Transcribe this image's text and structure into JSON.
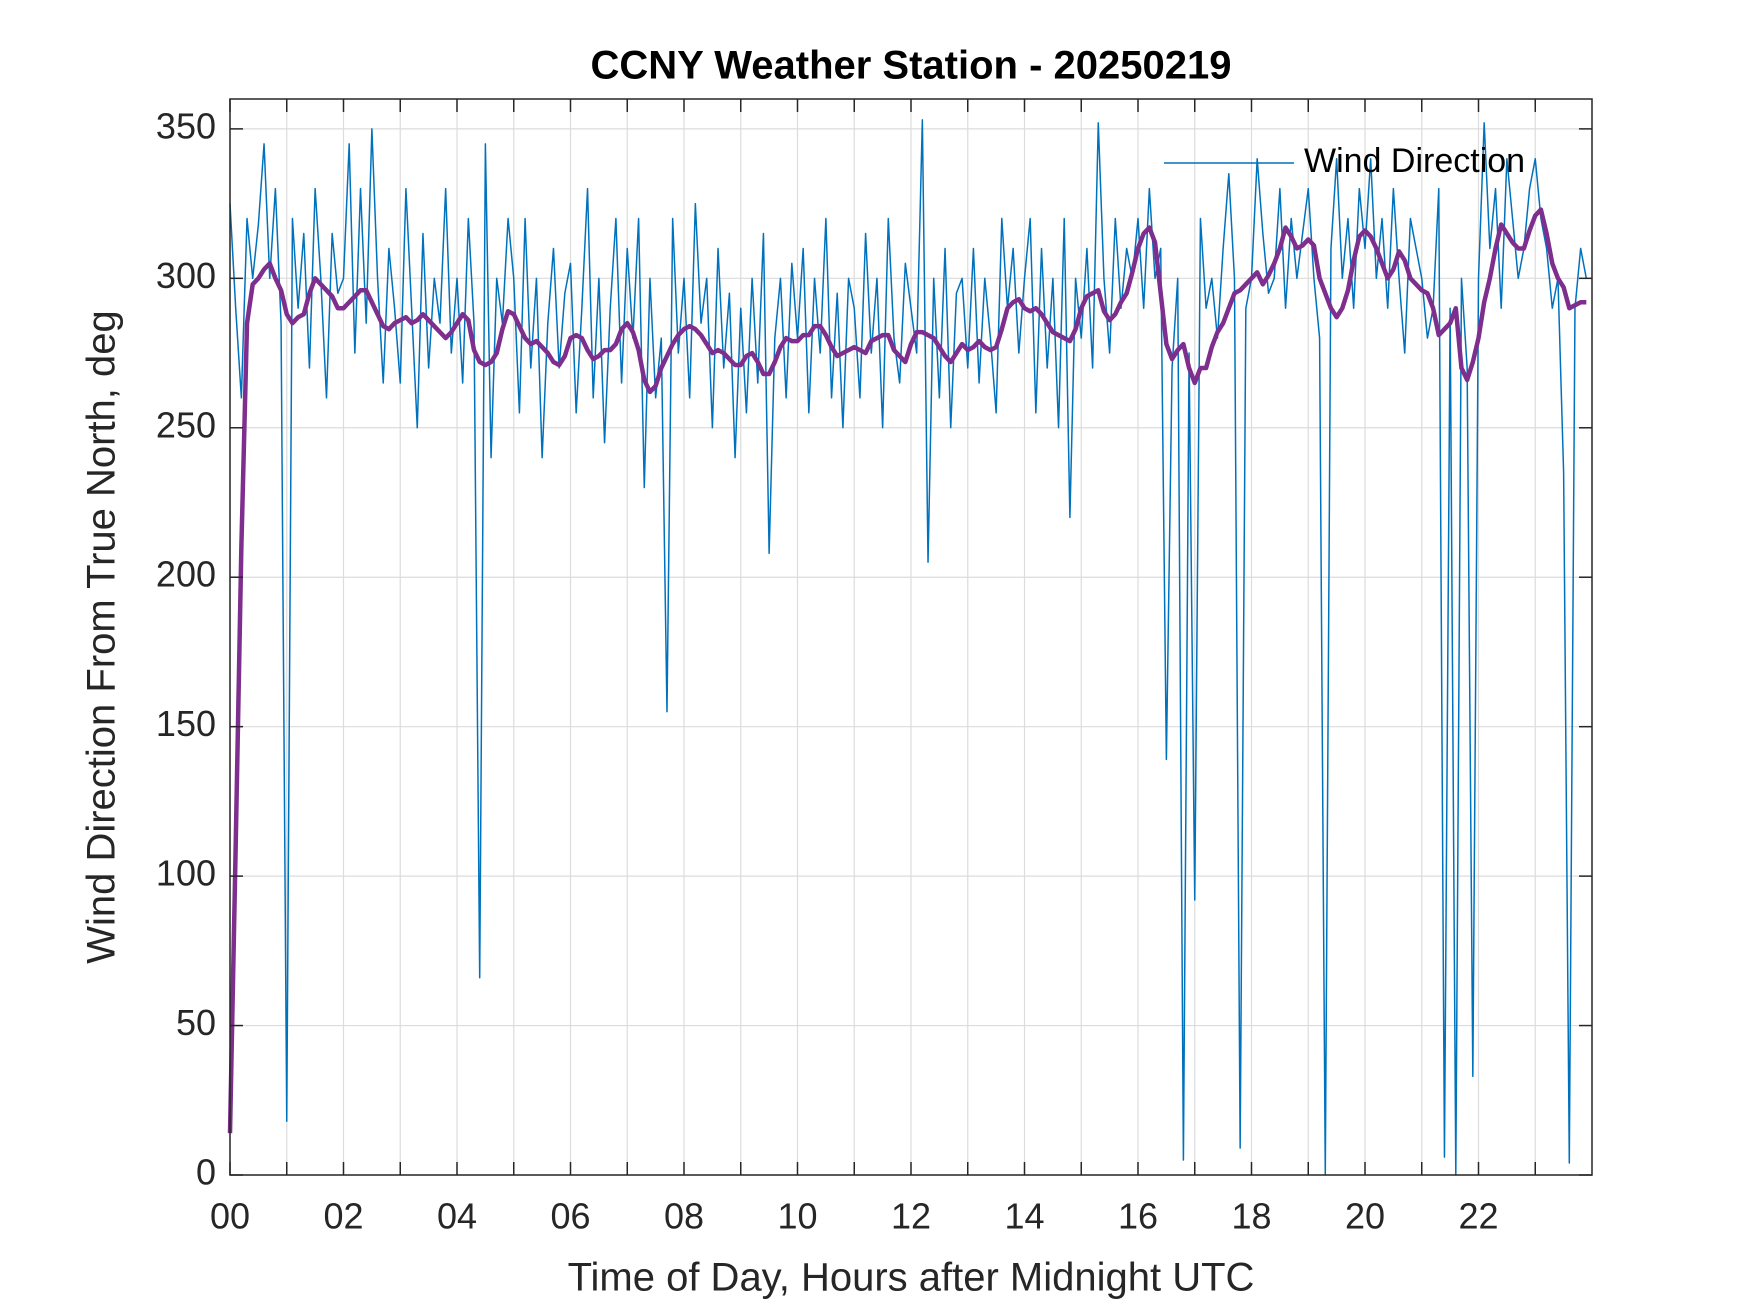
{
  "chart_data": {
    "type": "line",
    "title": "CCNY Weather Station - 20250219",
    "x_label": "Time of Day, Hours after Midnight UTC",
    "y_label": "Wind Direction From True North, deg",
    "xlim": [
      0,
      24
    ],
    "ylim": [
      0,
      360
    ],
    "xticks": [
      {
        "value": 0,
        "label": "00"
      },
      {
        "value": 1,
        "label": null
      },
      {
        "value": 2,
        "label": "02"
      },
      {
        "value": 3,
        "label": null
      },
      {
        "value": 4,
        "label": "04"
      },
      {
        "value": 5,
        "label": null
      },
      {
        "value": 6,
        "label": "06"
      },
      {
        "value": 7,
        "label": null
      },
      {
        "value": 8,
        "label": "08"
      },
      {
        "value": 9,
        "label": null
      },
      {
        "value": 10,
        "label": "10"
      },
      {
        "value": 11,
        "label": null
      },
      {
        "value": 12,
        "label": "12"
      },
      {
        "value": 13,
        "label": null
      },
      {
        "value": 14,
        "label": "14"
      },
      {
        "value": 15,
        "label": null
      },
      {
        "value": 16,
        "label": "16"
      },
      {
        "value": 17,
        "label": null
      },
      {
        "value": 18,
        "label": "18"
      },
      {
        "value": 19,
        "label": null
      },
      {
        "value": 20,
        "label": "20"
      },
      {
        "value": 21,
        "label": null
      },
      {
        "value": 22,
        "label": "22"
      },
      {
        "value": 23,
        "label": null
      }
    ],
    "yticks": [
      0,
      50,
      100,
      150,
      200,
      250,
      300,
      350
    ],
    "grid": true,
    "legend": "upper right",
    "x": [
      0,
      0.1,
      0.2,
      0.3,
      0.4,
      0.5,
      0.6,
      0.7,
      0.8,
      0.9,
      1,
      1.1,
      1.2,
      1.3,
      1.4,
      1.5,
      1.6,
      1.7,
      1.8,
      1.9,
      2,
      2.1,
      2.2,
      2.3,
      2.4,
      2.5,
      2.6,
      2.7,
      2.8,
      2.9,
      3,
      3.1,
      3.2,
      3.3,
      3.4,
      3.5,
      3.6,
      3.7,
      3.8,
      3.9,
      4,
      4.1,
      4.2,
      4.3,
      4.4,
      4.5,
      4.6,
      4.7,
      4.8,
      4.9,
      5,
      5.1,
      5.2,
      5.3,
      5.4,
      5.5,
      5.6,
      5.7,
      5.8,
      5.9,
      6,
      6.1,
      6.2,
      6.3,
      6.4,
      6.5,
      6.6,
      6.7,
      6.8,
      6.9,
      7,
      7.1,
      7.2,
      7.3,
      7.4,
      7.5,
      7.6,
      7.7,
      7.8,
      7.9,
      8,
      8.1,
      8.2,
      8.3,
      8.4,
      8.5,
      8.6,
      8.7,
      8.8,
      8.9,
      9,
      9.1,
      9.2,
      9.3,
      9.4,
      9.5,
      9.6,
      9.7,
      9.8,
      9.9,
      10,
      10.1,
      10.2,
      10.3,
      10.4,
      10.5,
      10.6,
      10.7,
      10.8,
      10.9,
      11,
      11.1,
      11.2,
      11.3,
      11.4,
      11.5,
      11.6,
      11.7,
      11.8,
      11.9,
      12,
      12.1,
      12.2,
      12.3,
      12.4,
      12.5,
      12.6,
      12.7,
      12.8,
      12.9,
      13,
      13.1,
      13.2,
      13.3,
      13.4,
      13.5,
      13.6,
      13.7,
      13.8,
      13.9,
      14,
      14.1,
      14.2,
      14.3,
      14.4,
      14.5,
      14.6,
      14.7,
      14.8,
      14.9,
      15,
      15.1,
      15.2,
      15.3,
      15.4,
      15.5,
      15.6,
      15.7,
      15.8,
      15.9,
      16,
      16.1,
      16.2,
      16.3,
      16.4,
      16.5,
      16.6,
      16.7,
      16.8,
      16.9,
      17,
      17.1,
      17.2,
      17.3,
      17.4,
      17.5,
      17.6,
      17.7,
      17.8,
      17.9,
      18,
      18.1,
      18.2,
      18.3,
      18.4,
      18.5,
      18.6,
      18.7,
      18.8,
      18.9,
      19,
      19.1,
      19.2,
      19.3,
      19.4,
      19.5,
      19.6,
      19.7,
      19.8,
      19.9,
      20,
      20.1,
      20.2,
      20.3,
      20.4,
      20.5,
      20.6,
      20.7,
      20.8,
      20.9,
      21,
      21.1,
      21.2,
      21.3,
      21.4,
      21.5,
      21.6,
      21.7,
      21.8,
      21.9,
      22,
      22.1,
      22.2,
      22.3,
      22.4,
      22.5,
      22.6,
      22.7,
      22.8,
      22.9,
      23,
      23.1,
      23.2,
      23.3,
      23.4,
      23.5,
      23.6,
      23.7,
      23.8,
      23.9
    ],
    "series": [
      {
        "name": "Wind Direction",
        "color": "#0072bd",
        "width": 1.5,
        "values": [
          325,
          290,
          260,
          320,
          300,
          318,
          345,
          300,
          330,
          285,
          18,
          320,
          290,
          315,
          270,
          330,
          300,
          260,
          315,
          295,
          300,
          345,
          275,
          330,
          285,
          350,
          300,
          265,
          310,
          290,
          265,
          330,
          290,
          250,
          315,
          270,
          300,
          285,
          330,
          275,
          300,
          265,
          320,
          285,
          66,
          345,
          240,
          300,
          285,
          320,
          300,
          255,
          320,
          270,
          300,
          240,
          285,
          310,
          270,
          295,
          305,
          255,
          290,
          330,
          260,
          300,
          245,
          290,
          320,
          265,
          310,
          280,
          320,
          230,
          300,
          260,
          280,
          155,
          320,
          275,
          300,
          260,
          325,
          285,
          300,
          250,
          310,
          270,
          295,
          240,
          290,
          255,
          300,
          265,
          315,
          208,
          280,
          300,
          260,
          305,
          280,
          310,
          255,
          300,
          275,
          320,
          260,
          295,
          250,
          300,
          290,
          260,
          315,
          275,
          300,
          250,
          320,
          280,
          265,
          305,
          290,
          275,
          353,
          205,
          300,
          260,
          310,
          250,
          295,
          300,
          270,
          310,
          265,
          300,
          280,
          255,
          320,
          290,
          310,
          275,
          300,
          320,
          255,
          310,
          270,
          300,
          250,
          320,
          220,
          300,
          280,
          310,
          270,
          352,
          300,
          275,
          320,
          290,
          310,
          300,
          320,
          290,
          330,
          300,
          310,
          139,
          270,
          300,
          5,
          275,
          92,
          320,
          290,
          300,
          280,
          310,
          335,
          300,
          9,
          290,
          300,
          340,
          315,
          295,
          300,
          330,
          290,
          320,
          300,
          315,
          330,
          300,
          280,
          0,
          310,
          340,
          300,
          320,
          290,
          330,
          310,
          340,
          300,
          320,
          290,
          330,
          300,
          275,
          320,
          310,
          300,
          280,
          290,
          330,
          6,
          290,
          0,
          300,
          270,
          33,
          300,
          352,
          310,
          330,
          290,
          340,
          320,
          300,
          310,
          330,
          340,
          320,
          310,
          290,
          300,
          235,
          4,
          290,
          310,
          300
        ]
      },
      {
        "color": "#7e2f8e",
        "width": 4.5,
        "values": [
          14,
          110,
          210,
          285,
          298,
          300,
          303,
          305,
          300,
          296,
          288,
          285,
          287,
          288,
          295,
          300,
          298,
          296,
          294,
          290,
          290,
          292,
          294,
          296,
          296,
          292,
          288,
          284,
          283,
          285,
          286,
          287,
          285,
          286,
          288,
          286,
          284,
          282,
          280,
          282,
          285,
          288,
          286,
          276,
          272,
          271,
          272,
          275,
          283,
          289,
          288,
          284,
          280,
          278,
          279,
          277,
          275,
          272,
          271,
          274,
          280,
          281,
          280,
          276,
          273,
          274,
          276,
          276,
          278,
          283,
          285,
          282,
          276,
          266,
          262,
          264,
          270,
          274,
          278,
          281,
          283,
          284,
          283,
          281,
          278,
          275,
          276,
          275,
          273,
          271,
          271,
          274,
          275,
          272,
          268,
          268,
          272,
          277,
          280,
          279,
          279,
          281,
          281,
          284,
          284,
          281,
          277,
          274,
          275,
          276,
          277,
          276,
          275,
          279,
          280,
          281,
          281,
          276,
          274,
          272,
          278,
          282,
          282,
          281,
          280,
          277,
          274,
          272,
          275,
          278,
          276,
          277,
          279,
          277,
          276,
          277,
          283,
          290,
          292,
          293,
          290,
          289,
          290,
          288,
          285,
          282,
          281,
          280,
          279,
          283,
          290,
          294,
          295,
          296,
          289,
          286,
          288,
          292,
          295,
          302,
          310,
          315,
          317,
          312,
          295,
          278,
          273,
          276,
          278,
          270,
          265,
          270,
          270,
          277,
          282,
          285,
          290,
          295,
          296,
          298,
          300,
          302,
          298,
          301,
          305,
          310,
          317,
          314,
          310,
          311,
          313,
          311,
          300,
          295,
          290,
          287,
          290,
          296,
          306,
          314,
          316,
          314,
          310,
          305,
          300,
          303,
          309,
          306,
          300,
          298,
          296,
          295,
          290,
          281,
          283,
          285,
          290,
          270,
          266,
          272,
          280,
          292,
          300,
          310,
          318,
          315,
          312,
          310,
          310,
          316,
          321,
          323,
          315,
          305,
          300,
          297,
          290,
          291,
          292,
          292
        ]
      }
    ]
  }
}
